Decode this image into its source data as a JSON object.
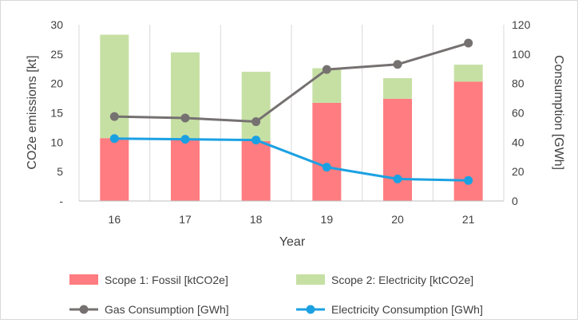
{
  "chart_data": {
    "type": "bar",
    "stacked": true,
    "categories": [
      "16",
      "17",
      "18",
      "19",
      "20",
      "21"
    ],
    "xlabel": "Year",
    "ylabel": "CO2e emissions [kt]",
    "y2label": "Consumption [GWh]",
    "ylim": [
      0,
      30
    ],
    "y2lim": [
      0,
      120
    ],
    "yticks": [
      "-",
      "5",
      "10",
      "15",
      "20",
      "25",
      "30"
    ],
    "y2ticks": [
      "0",
      "20",
      "40",
      "60",
      "80",
      "100",
      "120"
    ],
    "grid": "vertical",
    "legend_position": "bottom",
    "bar_series": [
      {
        "name": "Scope 1: Fossil [ktCO2e]",
        "color": "#ff7c80",
        "values": [
          10.7,
          10.5,
          10.2,
          16.7,
          17.4,
          20.3
        ]
      },
      {
        "name": "Scope 2: Electricity [ktCO2e]",
        "color": "#c6e0a4",
        "values": [
          17.6,
          14.8,
          11.8,
          5.9,
          3.5,
          2.9
        ]
      }
    ],
    "line_series": [
      {
        "name": "Gas Consumption [GWh]",
        "color": "#767171",
        "axis": "secondary",
        "values": [
          57.5,
          56.5,
          54.0,
          89.5,
          93.0,
          107.5
        ]
      },
      {
        "name": "Electricity Consumption [GWh]",
        "color": "#1ba1e2",
        "axis": "secondary",
        "values": [
          42.5,
          42.0,
          41.5,
          23.0,
          15.0,
          14.0
        ]
      }
    ]
  }
}
